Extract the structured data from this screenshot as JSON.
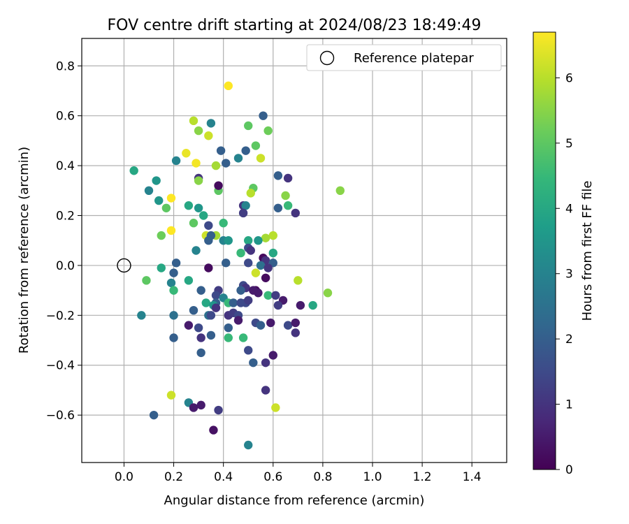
{
  "chart_data": {
    "type": "scatter",
    "title": "FOV centre drift starting at 2024/08/23 18:49:49",
    "xlabel": "Angular distance from reference (arcmin)",
    "ylabel": "Rotation from reference (arcmin)",
    "xlim": [
      -0.17,
      1.54
    ],
    "ylim": [
      -0.79,
      0.91
    ],
    "xticks": [
      0.0,
      0.2,
      0.4,
      0.6,
      0.8,
      1.0,
      1.2,
      1.4
    ],
    "xtick_labels": [
      "0.0",
      "0.2",
      "0.4",
      "0.6",
      "0.8",
      "1.0",
      "1.2",
      "1.4"
    ],
    "yticks": [
      -0.6,
      -0.4,
      -0.2,
      0.0,
      0.2,
      0.4,
      0.6,
      0.8
    ],
    "ytick_labels": [
      "−0.6",
      "−0.4",
      "−0.2",
      "0.0",
      "0.2",
      "0.4",
      "0.6",
      "0.8"
    ],
    "grid": true,
    "legend": {
      "placement": "top-right",
      "entries": [
        "Reference platepar"
      ]
    },
    "reference_point": {
      "x": 0.0,
      "y": 0.0,
      "name": "Reference platepar"
    },
    "colorbar": {
      "label": "Hours from first FF file",
      "range": [
        0,
        6.7
      ],
      "ticks": [
        0,
        1,
        2,
        3,
        4,
        5,
        6
      ],
      "tick_labels": [
        "0",
        "1",
        "2",
        "3",
        "4",
        "5",
        "6"
      ],
      "colormap": "viridis"
    },
    "points": [
      {
        "x": 0.42,
        "y": 0.72,
        "h": 6.7
      },
      {
        "x": 0.56,
        "y": 0.6,
        "h": 2.0
      },
      {
        "x": 0.28,
        "y": 0.58,
        "h": 6.0
      },
      {
        "x": 0.35,
        "y": 0.57,
        "h": 3.0
      },
      {
        "x": 0.5,
        "y": 0.56,
        "h": 5.0
      },
      {
        "x": 0.3,
        "y": 0.54,
        "h": 5.5
      },
      {
        "x": 0.58,
        "y": 0.54,
        "h": 5.2
      },
      {
        "x": 0.34,
        "y": 0.52,
        "h": 6.2
      },
      {
        "x": 0.53,
        "y": 0.48,
        "h": 5.0
      },
      {
        "x": 0.39,
        "y": 0.46,
        "h": 2.0
      },
      {
        "x": 0.49,
        "y": 0.46,
        "h": 2.0
      },
      {
        "x": 0.25,
        "y": 0.45,
        "h": 6.5
      },
      {
        "x": 0.46,
        "y": 0.43,
        "h": 3.0
      },
      {
        "x": 0.55,
        "y": 0.43,
        "h": 6.2
      },
      {
        "x": 0.21,
        "y": 0.42,
        "h": 3.0
      },
      {
        "x": 0.41,
        "y": 0.41,
        "h": 2.0
      },
      {
        "x": 0.29,
        "y": 0.41,
        "h": 6.6
      },
      {
        "x": 0.37,
        "y": 0.4,
        "h": 5.8
      },
      {
        "x": 0.04,
        "y": 0.38,
        "h": 4.0
      },
      {
        "x": 0.62,
        "y": 0.36,
        "h": 2.0
      },
      {
        "x": 0.66,
        "y": 0.35,
        "h": 1.0
      },
      {
        "x": 0.3,
        "y": 0.35,
        "h": 1.0
      },
      {
        "x": 0.13,
        "y": 0.34,
        "h": 3.5
      },
      {
        "x": 0.3,
        "y": 0.34,
        "h": 5.5
      },
      {
        "x": 0.52,
        "y": 0.31,
        "h": 5.0
      },
      {
        "x": 0.1,
        "y": 0.3,
        "h": 3.0
      },
      {
        "x": 0.38,
        "y": 0.3,
        "h": 5.0
      },
      {
        "x": 0.51,
        "y": 0.29,
        "h": 6.0
      },
      {
        "x": 0.65,
        "y": 0.28,
        "h": 5.5
      },
      {
        "x": 0.38,
        "y": 0.32,
        "h": 0.2
      },
      {
        "x": 0.14,
        "y": 0.26,
        "h": 3.5
      },
      {
        "x": 0.19,
        "y": 0.27,
        "h": 6.7
      },
      {
        "x": 0.17,
        "y": 0.23,
        "h": 5.0
      },
      {
        "x": 0.26,
        "y": 0.24,
        "h": 4.0
      },
      {
        "x": 0.66,
        "y": 0.24,
        "h": 4.5
      },
      {
        "x": 0.48,
        "y": 0.24,
        "h": 1.0
      },
      {
        "x": 0.49,
        "y": 0.24,
        "h": 3.0
      },
      {
        "x": 0.3,
        "y": 0.23,
        "h": 3.5
      },
      {
        "x": 0.62,
        "y": 0.23,
        "h": 2.0
      },
      {
        "x": 0.69,
        "y": 0.21,
        "h": 1.0
      },
      {
        "x": 0.48,
        "y": 0.21,
        "h": 1.2
      },
      {
        "x": 0.32,
        "y": 0.2,
        "h": 4.0
      },
      {
        "x": 0.87,
        "y": 0.3,
        "h": 5.5
      },
      {
        "x": 0.28,
        "y": 0.17,
        "h": 5.0
      },
      {
        "x": 0.4,
        "y": 0.17,
        "h": 4.5
      },
      {
        "x": 0.34,
        "y": 0.16,
        "h": 1.5
      },
      {
        "x": 0.15,
        "y": 0.12,
        "h": 5.2
      },
      {
        "x": 0.19,
        "y": 0.14,
        "h": 6.7
      },
      {
        "x": 0.33,
        "y": 0.12,
        "h": 6.2
      },
      {
        "x": 0.37,
        "y": 0.12,
        "h": 5.8
      },
      {
        "x": 0.35,
        "y": 0.12,
        "h": 2.0
      },
      {
        "x": 0.6,
        "y": 0.12,
        "h": 6.0
      },
      {
        "x": 0.57,
        "y": 0.11,
        "h": 5.8
      },
      {
        "x": 0.54,
        "y": 0.1,
        "h": 3.5
      },
      {
        "x": 0.4,
        "y": 0.1,
        "h": 3.0
      },
      {
        "x": 0.42,
        "y": 0.1,
        "h": 3.5
      },
      {
        "x": 0.34,
        "y": 0.1,
        "h": 2.0
      },
      {
        "x": 0.5,
        "y": 0.1,
        "h": 4.0
      },
      {
        "x": 0.5,
        "y": 0.07,
        "h": 1.5
      },
      {
        "x": 0.51,
        "y": 0.06,
        "h": 1.0
      },
      {
        "x": 0.29,
        "y": 0.06,
        "h": 3.0
      },
      {
        "x": 0.47,
        "y": 0.05,
        "h": 4.5
      },
      {
        "x": 0.6,
        "y": 0.05,
        "h": 4.0
      },
      {
        "x": 0.56,
        "y": 0.03,
        "h": 0.2
      },
      {
        "x": 0.57,
        "y": 0.02,
        "h": 1.0
      },
      {
        "x": 0.6,
        "y": 0.01,
        "h": 2.0
      },
      {
        "x": 0.41,
        "y": 0.01,
        "h": 2.0
      },
      {
        "x": 0.21,
        "y": 0.01,
        "h": 2.0
      },
      {
        "x": 0.5,
        "y": 0.01,
        "h": 1.5
      },
      {
        "x": 0.55,
        "y": 0.0,
        "h": 2.5
      },
      {
        "x": 0.34,
        "y": -0.01,
        "h": 0.2
      },
      {
        "x": 0.15,
        "y": -0.01,
        "h": 4.0
      },
      {
        "x": 0.58,
        "y": -0.01,
        "h": 1.0
      },
      {
        "x": 0.53,
        "y": -0.03,
        "h": 6.2
      },
      {
        "x": 0.2,
        "y": -0.03,
        "h": 2.0
      },
      {
        "x": 0.57,
        "y": -0.05,
        "h": 0.2
      },
      {
        "x": 0.09,
        "y": -0.06,
        "h": 5.0
      },
      {
        "x": 0.26,
        "y": -0.06,
        "h": 4.0
      },
      {
        "x": 0.7,
        "y": -0.06,
        "h": 6.0
      },
      {
        "x": 0.19,
        "y": -0.07,
        "h": 3.0
      },
      {
        "x": 0.48,
        "y": -0.08,
        "h": 1.5
      },
      {
        "x": 0.49,
        "y": -0.09,
        "h": 1.0
      },
      {
        "x": 0.38,
        "y": -0.1,
        "h": 1.2
      },
      {
        "x": 0.47,
        "y": -0.1,
        "h": 2.0
      },
      {
        "x": 0.53,
        "y": -0.1,
        "h": 0.2
      },
      {
        "x": 0.31,
        "y": -0.1,
        "h": 2.0
      },
      {
        "x": 0.2,
        "y": -0.1,
        "h": 4.5
      },
      {
        "x": 0.54,
        "y": -0.11,
        "h": 0.5
      },
      {
        "x": 0.52,
        "y": -0.1,
        "h": 0.5
      },
      {
        "x": 0.82,
        "y": -0.11,
        "h": 5.5
      },
      {
        "x": 0.37,
        "y": -0.12,
        "h": 1.5
      },
      {
        "x": 0.58,
        "y": -0.12,
        "h": 4.5
      },
      {
        "x": 0.61,
        "y": -0.12,
        "h": 1.2
      },
      {
        "x": 0.4,
        "y": -0.13,
        "h": 3.0
      },
      {
        "x": 0.64,
        "y": -0.14,
        "h": 0.5
      },
      {
        "x": 0.42,
        "y": -0.15,
        "h": 4.5
      },
      {
        "x": 0.37,
        "y": -0.15,
        "h": 2.0
      },
      {
        "x": 0.33,
        "y": -0.15,
        "h": 4.0
      },
      {
        "x": 0.36,
        "y": -0.16,
        "h": 3.5
      },
      {
        "x": 0.44,
        "y": -0.15,
        "h": 2.0
      },
      {
        "x": 0.47,
        "y": -0.15,
        "h": 1.5
      },
      {
        "x": 0.49,
        "y": -0.15,
        "h": 1.5
      },
      {
        "x": 0.5,
        "y": -0.14,
        "h": 1.2
      },
      {
        "x": 0.71,
        "y": -0.16,
        "h": 0.5
      },
      {
        "x": 0.76,
        "y": -0.16,
        "h": 4.0
      },
      {
        "x": 0.37,
        "y": -0.17,
        "h": 1.0
      },
      {
        "x": 0.62,
        "y": -0.16,
        "h": 1.2
      },
      {
        "x": 0.28,
        "y": -0.18,
        "h": 2.0
      },
      {
        "x": 0.07,
        "y": -0.2,
        "h": 3.0
      },
      {
        "x": 0.2,
        "y": -0.2,
        "h": 2.5
      },
      {
        "x": 0.34,
        "y": -0.2,
        "h": 2.5
      },
      {
        "x": 0.35,
        "y": -0.2,
        "h": 1.5
      },
      {
        "x": 0.42,
        "y": -0.2,
        "h": 1.0
      },
      {
        "x": 0.44,
        "y": -0.19,
        "h": 1.2
      },
      {
        "x": 0.46,
        "y": -0.2,
        "h": 1.5
      },
      {
        "x": 0.46,
        "y": -0.22,
        "h": 0.5
      },
      {
        "x": 0.53,
        "y": -0.23,
        "h": 1.5
      },
      {
        "x": 0.55,
        "y": -0.24,
        "h": 2.0
      },
      {
        "x": 0.59,
        "y": -0.23,
        "h": 0.5
      },
      {
        "x": 0.66,
        "y": -0.24,
        "h": 1.5
      },
      {
        "x": 0.69,
        "y": -0.23,
        "h": 0.5
      },
      {
        "x": 0.26,
        "y": -0.24,
        "h": 0.5
      },
      {
        "x": 0.3,
        "y": -0.25,
        "h": 1.5
      },
      {
        "x": 0.42,
        "y": -0.25,
        "h": 2.0
      },
      {
        "x": 0.69,
        "y": -0.27,
        "h": 1.0
      },
      {
        "x": 0.2,
        "y": -0.29,
        "h": 2.0
      },
      {
        "x": 0.31,
        "y": -0.29,
        "h": 1.0
      },
      {
        "x": 0.35,
        "y": -0.28,
        "h": 2.0
      },
      {
        "x": 0.42,
        "y": -0.29,
        "h": 4.5
      },
      {
        "x": 0.48,
        "y": -0.29,
        "h": 4.5
      },
      {
        "x": 0.5,
        "y": -0.34,
        "h": 1.5
      },
      {
        "x": 0.31,
        "y": -0.35,
        "h": 2.0
      },
      {
        "x": 0.6,
        "y": -0.36,
        "h": 0.5
      },
      {
        "x": 0.52,
        "y": -0.39,
        "h": 2.0
      },
      {
        "x": 0.57,
        "y": -0.39,
        "h": 1.0
      },
      {
        "x": 0.57,
        "y": -0.5,
        "h": 1.0
      },
      {
        "x": 0.19,
        "y": -0.52,
        "h": 6.2
      },
      {
        "x": 0.26,
        "y": -0.55,
        "h": 3.0
      },
      {
        "x": 0.28,
        "y": -0.57,
        "h": 0.5
      },
      {
        "x": 0.31,
        "y": -0.56,
        "h": 0.5
      },
      {
        "x": 0.38,
        "y": -0.58,
        "h": 1.2
      },
      {
        "x": 0.61,
        "y": -0.57,
        "h": 6.2
      },
      {
        "x": 0.12,
        "y": -0.6,
        "h": 2.0
      },
      {
        "x": 0.36,
        "y": -0.66,
        "h": 0.3
      },
      {
        "x": 0.5,
        "y": -0.72,
        "h": 3.0
      }
    ]
  }
}
